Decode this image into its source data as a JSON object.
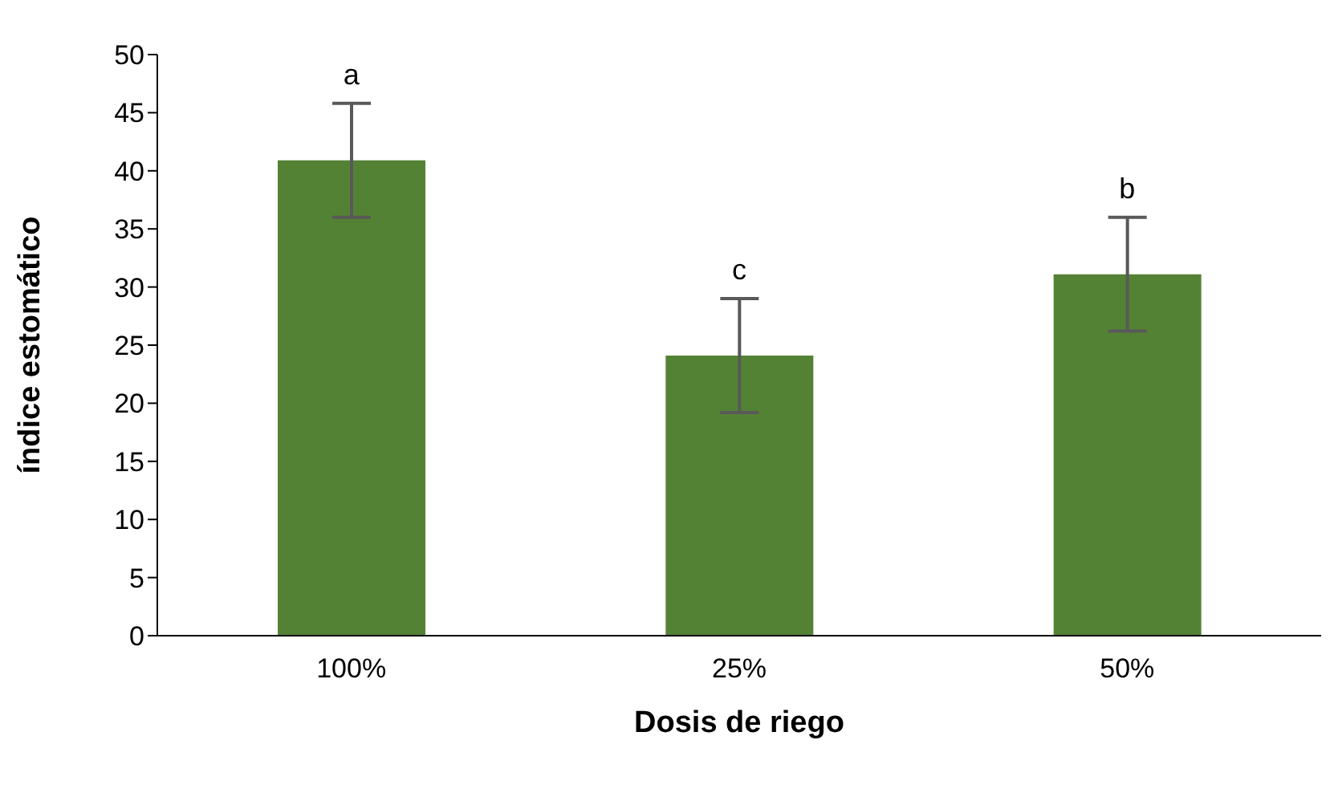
{
  "chart_data": {
    "type": "bar",
    "xlabel": "Dosis de riego",
    "ylabel": "índice estomático",
    "categories": [
      "100%",
      "25%",
      "50%"
    ],
    "values": [
      40.9,
      24.1,
      31.1
    ],
    "errors": [
      4.9,
      4.9,
      4.9
    ],
    "color": "#548235",
    "ylim": [
      0,
      50
    ],
    "yticks": [
      0,
      5,
      10,
      15,
      20,
      25,
      30,
      35,
      40,
      45,
      50
    ],
    "grid": false,
    "legend": false,
    "annotations": [
      {
        "text": "a",
        "x": "100%",
        "y": 45.8
      },
      {
        "text": "c",
        "x": "25%",
        "y": 29
      },
      {
        "text": "b",
        "x": "50%",
        "y": 36
      }
    ]
  }
}
